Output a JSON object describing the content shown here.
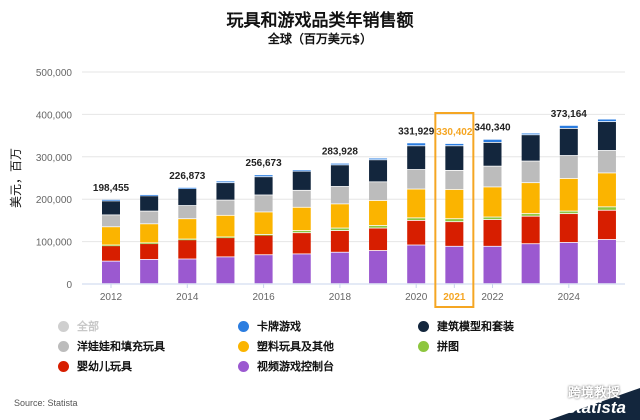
{
  "chart_data": {
    "type": "bar",
    "stacked": true,
    "title": "玩具和游戏品类年销售额",
    "subtitle": "全球（百万美元$）",
    "ylabel": "美元，百万",
    "xlabel": "",
    "ylim": [
      0,
      500000
    ],
    "yticks": [
      "0",
      "100,000",
      "200,000",
      "300,000",
      "400,000",
      "500,000"
    ],
    "ytick_values": [
      0,
      100000,
      200000,
      300000,
      400000,
      500000
    ],
    "grid": true,
    "categories": [
      "2012",
      "2013",
      "2014",
      "2015",
      "2016",
      "2017",
      "2018",
      "2019",
      "2020",
      "2021",
      "2022",
      "2023",
      "2024",
      "2025"
    ],
    "xtick_labels": [
      "2012",
      "",
      "2014",
      "",
      "2016",
      "",
      "2018",
      "",
      "2020",
      "2021",
      "2022",
      "",
      "2024",
      ""
    ],
    "highlight": "2021",
    "highlight_color": "#f5a623",
    "total_labels": [
      "198,455",
      "",
      "226,873",
      "",
      "256,673",
      "",
      "283,928",
      "",
      "331,929",
      "330,402",
      "340,340",
      "",
      "373,164",
      ""
    ],
    "series": [
      {
        "name": "视频游戏控制台",
        "color": "#9b59d0",
        "values": [
          53000,
          57000,
          58000,
          63000,
          68000,
          70000,
          74000,
          78000,
          91000,
          88000,
          88000,
          94000,
          97000,
          104000
        ]
      },
      {
        "name": "婴幼儿玩具",
        "color": "#d71e00",
        "values": [
          37000,
          38000,
          46000,
          46000,
          47000,
          50000,
          51000,
          53000,
          58000,
          58000,
          63000,
          65000,
          68000,
          69000
        ]
      },
      {
        "name": "拼图",
        "color": "#8dc63f",
        "values": [
          1000,
          1000,
          1000,
          1000,
          1000,
          5000,
          6000,
          6000,
          6000,
          7000,
          6000,
          6000,
          6000,
          8000
        ]
      },
      {
        "name": "塑料玩具及其他",
        "color": "#fbb400",
        "values": [
          43000,
          45000,
          48000,
          51000,
          53000,
          55000,
          57000,
          59000,
          68000,
          69000,
          71000,
          73000,
          77000,
          80000
        ]
      },
      {
        "name": "洋娃娃和填充玩具",
        "color": "#bcbcbc",
        "values": [
          28000,
          30000,
          31000,
          36000,
          40000,
          40000,
          41000,
          44000,
          46000,
          45000,
          49000,
          51000,
          54000,
          53000
        ]
      },
      {
        "name": "建筑模型和套装",
        "color": "#13263d",
        "values": [
          33000,
          36000,
          40000,
          41000,
          43000,
          45000,
          51000,
          52000,
          56000,
          58000,
          56000,
          62000,
          64000,
          68000
        ]
      },
      {
        "name": "卡牌游戏",
        "color": "#2b7de0",
        "values": [
          3455,
          3000,
          2873,
          4000,
          4673,
          3000,
          3928,
          4000,
          6929,
          5402,
          7340,
          4000,
          7164,
          6000
        ]
      }
    ]
  },
  "legend": [
    {
      "label": "全部",
      "color": "#cfcfcf",
      "muted": true
    },
    {
      "label": "卡牌游戏",
      "color": "#2b7de0"
    },
    {
      "label": "建筑模型和套装",
      "color": "#13263d"
    },
    {
      "label": "洋娃娃和填充玩具",
      "color": "#bcbcbc"
    },
    {
      "label": "塑料玩具及其他",
      "color": "#fbb400"
    },
    {
      "label": "拼图",
      "color": "#8dc63f"
    },
    {
      "label": "婴幼儿玩具",
      "color": "#d71e00"
    },
    {
      "label": "视频游戏控制台",
      "color": "#9b59d0"
    }
  ],
  "footer": {
    "source": "Source: Statista",
    "brand": "statista",
    "watermark": "跨境教授"
  }
}
